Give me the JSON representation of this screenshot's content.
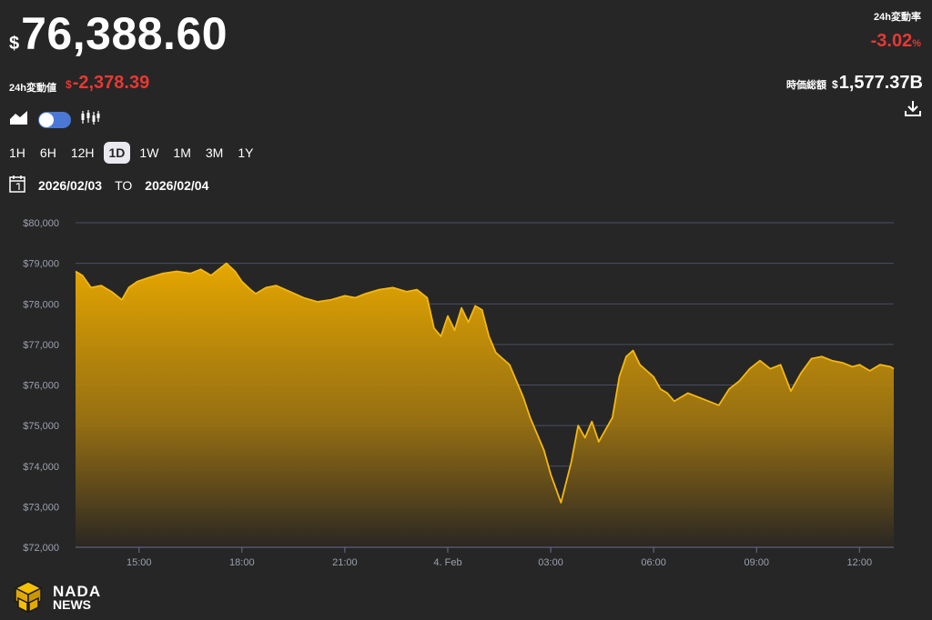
{
  "header": {
    "currency_symbol": "$",
    "price": "76,388.60",
    "change_label": "24h変動値",
    "change_currency": "$",
    "change_value": "-2,378.39",
    "pct_label": "24h変動率",
    "pct_value": "-3.02",
    "pct_unit": "%",
    "mcap_label": "時価総額",
    "mcap_currency": "$",
    "mcap_value": "1,577.37B",
    "negative_color": "#e53935"
  },
  "toolbar": {
    "icons": [
      "area-chart-icon",
      "chart-toggle-switch",
      "candlestick-icon",
      "download-icon"
    ],
    "toggle_color": "#4a78d4"
  },
  "ranges": [
    "1H",
    "6H",
    "12H",
    "1D",
    "1W",
    "1M",
    "3M",
    "1Y"
  ],
  "active_range": "1D",
  "date_range": {
    "from": "2026/02/03",
    "to_label": "TO",
    "to": "2026/02/04"
  },
  "logo": {
    "name": "NADA",
    "sub": "NEWS"
  },
  "chart_data": {
    "type": "area",
    "ylim": [
      72000,
      80000
    ],
    "y_ticks": [
      72000,
      73000,
      74000,
      75000,
      76000,
      77000,
      78000,
      79000,
      80000
    ],
    "y_tick_labels": [
      "$72,000",
      "$73,000",
      "$74,000",
      "$75,000",
      "$76,000",
      "$77,000",
      "$78,000",
      "$79,000",
      "$80,000"
    ],
    "x_ticks": [
      15,
      18,
      21,
      24,
      27,
      30,
      33,
      36
    ],
    "x_tick_labels": [
      "15:00",
      "18:00",
      "21:00",
      "4. Feb",
      "03:00",
      "06:00",
      "09:00",
      "12:00"
    ],
    "xlim": [
      13.15,
      37.0
    ],
    "grid": true,
    "line_color": "#f5b80e",
    "series": [
      {
        "x": [
          13.15,
          13.35,
          13.6,
          13.9,
          14.2,
          14.5,
          14.7,
          14.95,
          15.3,
          15.7,
          16.1,
          16.5,
          16.8,
          17.1,
          17.4,
          17.55,
          17.8,
          18.0,
          18.25,
          18.4,
          18.7,
          19.0,
          19.4,
          19.8,
          20.2,
          20.6,
          21.0,
          21.3,
          21.6,
          22.0,
          22.4,
          22.8,
          23.1,
          23.4,
          23.6,
          23.8,
          24.0,
          24.2,
          24.4,
          24.6,
          24.8,
          25.0,
          25.2,
          25.4,
          25.6,
          25.8,
          26.0,
          26.2,
          26.4,
          26.6,
          26.8,
          27.0,
          27.3,
          27.6,
          27.8,
          28.0,
          28.2,
          28.4,
          28.6,
          28.8,
          29.0,
          29.2,
          29.4,
          29.6,
          29.8,
          30.0,
          30.2,
          30.4,
          30.6,
          30.8,
          31.0,
          31.3,
          31.6,
          31.9,
          32.2,
          32.5,
          32.8,
          33.1,
          33.4,
          33.7,
          34.0,
          34.3,
          34.6,
          34.9,
          35.2,
          35.5,
          35.8,
          36.0,
          36.3,
          36.6,
          36.9,
          37.0
        ],
        "y": [
          78800,
          78700,
          78400,
          78450,
          78300,
          78100,
          78400,
          78550,
          78650,
          78750,
          78800,
          78750,
          78850,
          78700,
          78900,
          79000,
          78800,
          78550,
          78350,
          78250,
          78400,
          78450,
          78300,
          78150,
          78050,
          78100,
          78200,
          78150,
          78250,
          78350,
          78400,
          78300,
          78350,
          78150,
          77400,
          77200,
          77700,
          77350,
          77900,
          77550,
          77950,
          77850,
          77200,
          76800,
          76650,
          76500,
          76100,
          75700,
          75200,
          74800,
          74400,
          73800,
          73100,
          74100,
          75000,
          74700,
          75100,
          74600,
          74900,
          75200,
          76200,
          76700,
          76850,
          76500,
          76350,
          76200,
          75900,
          75800,
          75600,
          75700,
          75800,
          75700,
          75600,
          75500,
          75900,
          76100,
          76400,
          76600,
          76400,
          76500,
          75850,
          76300,
          76650,
          76700,
          76600,
          76550,
          76450,
          76500,
          76350,
          76500,
          76450,
          76400
        ]
      }
    ]
  }
}
